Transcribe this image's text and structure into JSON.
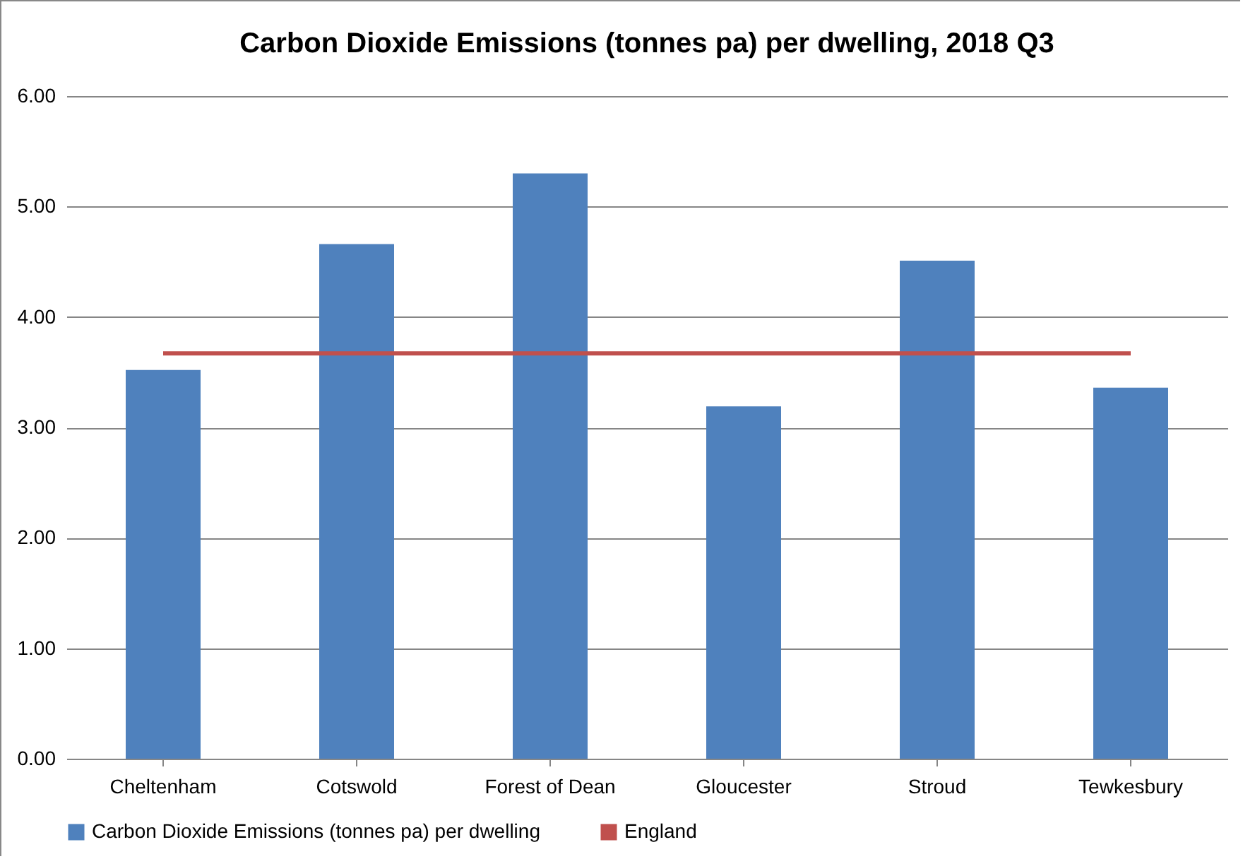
{
  "chart_data": {
    "type": "bar",
    "title": "Carbon Dioxide Emissions (tonnes pa) per dwelling, 2018 Q3",
    "categories": [
      "Cheltenham",
      "Cotswold",
      "Forest of Dean",
      "Gloucester",
      "Stroud",
      "Tewkesbury"
    ],
    "series": [
      {
        "name": "Carbon Dioxide Emissions (tonnes pa) per dwelling",
        "color": "#4f81bd",
        "values": [
          3.52,
          4.66,
          5.3,
          3.19,
          4.51,
          3.36
        ]
      },
      {
        "name": "England",
        "type": "line",
        "color": "#c0504d",
        "values": [
          3.67,
          3.67,
          3.67,
          3.67,
          3.67,
          3.67
        ]
      }
    ],
    "ylim": [
      0,
      6
    ],
    "yticks": [
      {
        "value": 0,
        "label": "0.00"
      },
      {
        "value": 1,
        "label": "1.00"
      },
      {
        "value": 2,
        "label": "2.00"
      },
      {
        "value": 3,
        "label": "3.00"
      },
      {
        "value": 4,
        "label": "4.00"
      },
      {
        "value": 5,
        "label": "5.00"
      },
      {
        "value": 6,
        "label": "6.00"
      }
    ],
    "grid": "y",
    "legend": "bottom"
  }
}
